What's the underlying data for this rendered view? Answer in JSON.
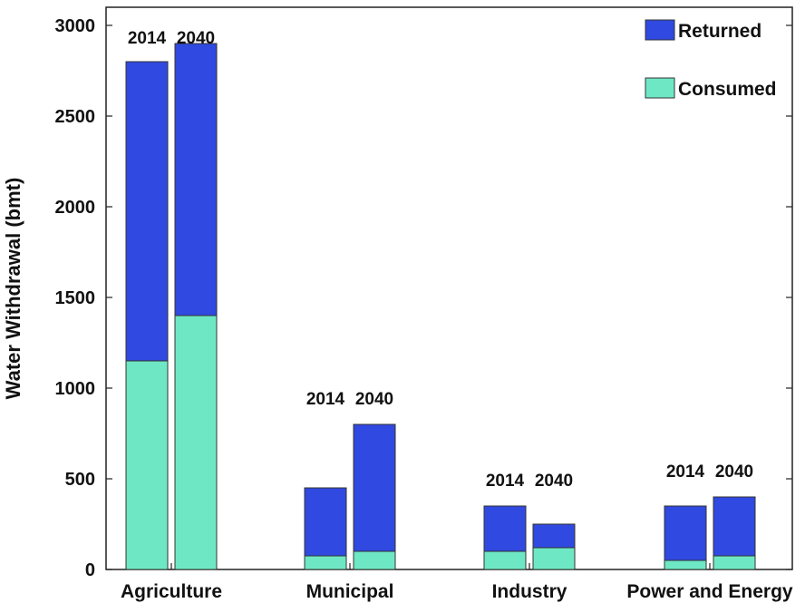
{
  "chart_data": {
    "type": "bar",
    "stacked": true,
    "ylabel": "Water Withdrawal (bmt)",
    "xlabel": "",
    "title": "",
    "ylim": [
      0,
      3100
    ],
    "yticks": [
      0,
      500,
      1000,
      1500,
      2000,
      2500,
      3000
    ],
    "grid": false,
    "legend_position": "top-right",
    "categories": [
      "Agriculture",
      "Municipal",
      "Industry",
      "Power and Energy"
    ],
    "years": [
      "2014",
      "2040"
    ],
    "series": [
      {
        "name": "Consumed",
        "color": "#6ee8c4",
        "values": {
          "2014": [
            1150,
            75,
            100,
            50
          ],
          "2040": [
            1400,
            100,
            120,
            75
          ]
        }
      },
      {
        "name": "Returned",
        "color": "#3049e0",
        "values": {
          "2014": [
            1650,
            375,
            250,
            300
          ],
          "2040": [
            1500,
            700,
            130,
            325
          ]
        }
      }
    ],
    "totals": {
      "2014": [
        2800,
        450,
        350,
        350
      ],
      "2040": [
        2900,
        800,
        250,
        400
      ]
    }
  }
}
